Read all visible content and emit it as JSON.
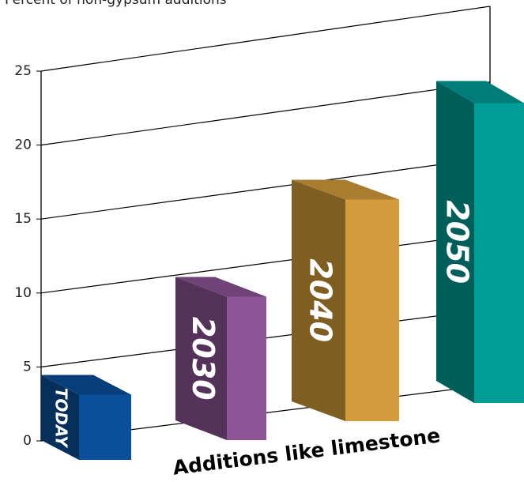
{
  "chart_data": {
    "type": "bar3d",
    "title": "Percent of non-gypsum additions",
    "x_label": "Additions like limestone",
    "categories": [
      "TODAY",
      "2030",
      "2040",
      "2050"
    ],
    "values": [
      5,
      11,
      17,
      23
    ],
    "colors": [
      "#0a4f9a",
      "#8c5496",
      "#d39c3c",
      "#009c96"
    ],
    "ylim": [
      0,
      25
    ],
    "yticks": [
      0,
      5,
      10,
      15,
      20,
      25
    ],
    "grid": true
  }
}
